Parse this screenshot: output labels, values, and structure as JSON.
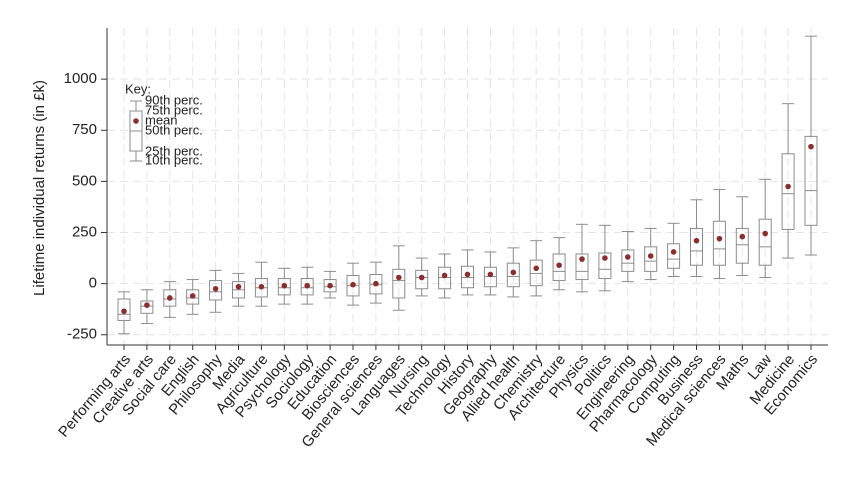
{
  "chart_data": {
    "type": "box",
    "y_label": "Lifetime individual returns (in £k)",
    "categories": [
      "Performing arts",
      "Creative arts",
      "Social care",
      "English",
      "Philosophy",
      "Media",
      "Agriculture",
      "Psychology",
      "Sociology",
      "Education",
      "Biosciences",
      "General sciences",
      "Languages",
      "Nursing",
      "Technology",
      "History",
      "Geography",
      "Allied health",
      "Chemistry",
      "Architecture",
      "Physics",
      "Politics",
      "Engineering",
      "Pharmacology",
      "Computing",
      "Business",
      "Medical sciences",
      "Maths",
      "Law",
      "Medicine",
      "Economics"
    ],
    "p10": [
      -245,
      -195,
      -165,
      -150,
      -140,
      -110,
      -110,
      -100,
      -100,
      -70,
      -105,
      -95,
      -130,
      -60,
      -70,
      -55,
      -55,
      -65,
      -60,
      -30,
      -40,
      -35,
      10,
      20,
      35,
      35,
      25,
      40,
      30,
      125,
      140
    ],
    "p25": [
      -180,
      -145,
      -110,
      -100,
      -80,
      -70,
      -65,
      -55,
      -55,
      -40,
      -60,
      -50,
      -70,
      -25,
      -25,
      -20,
      -15,
      -15,
      -10,
      15,
      20,
      25,
      60,
      60,
      75,
      90,
      90,
      100,
      90,
      265,
      285
    ],
    "median": [
      -150,
      -110,
      -75,
      -70,
      -40,
      -30,
      -20,
      -20,
      -20,
      -15,
      -10,
      -5,
      15,
      30,
      30,
      30,
      35,
      35,
      50,
      60,
      60,
      70,
      100,
      110,
      120,
      160,
      170,
      190,
      180,
      440,
      455
    ],
    "p75": [
      -75,
      -85,
      -30,
      -30,
      15,
      10,
      25,
      25,
      25,
      20,
      40,
      45,
      70,
      65,
      80,
      85,
      80,
      100,
      115,
      145,
      145,
      150,
      165,
      180,
      195,
      270,
      305,
      270,
      315,
      635,
      720
    ],
    "p90": [
      -40,
      -30,
      10,
      20,
      65,
      50,
      105,
      75,
      80,
      60,
      100,
      105,
      185,
      125,
      145,
      165,
      155,
      175,
      210,
      225,
      290,
      285,
      255,
      270,
      295,
      410,
      460,
      425,
      510,
      880,
      1210
    ],
    "mean": [
      -135,
      -105,
      -70,
      -60,
      -25,
      -15,
      -15,
      -10,
      -10,
      -10,
      -5,
      0,
      30,
      30,
      40,
      45,
      45,
      55,
      75,
      90,
      120,
      125,
      130,
      135,
      155,
      210,
      220,
      230,
      245,
      475,
      670
    ],
    "box_color": "#8c8c8c",
    "mean_color": "#8b2e2e",
    "ylim": [
      -300,
      1250
    ],
    "yticks": [
      -250,
      0,
      250,
      500,
      750,
      1000
    ],
    "grid": true,
    "key": {
      "title": "Key:",
      "p90": "90th perc.",
      "p75": "75th perc.",
      "mean": "mean",
      "median": "50th perc.",
      "p25": "25th perc.",
      "p10": "10th perc."
    }
  }
}
